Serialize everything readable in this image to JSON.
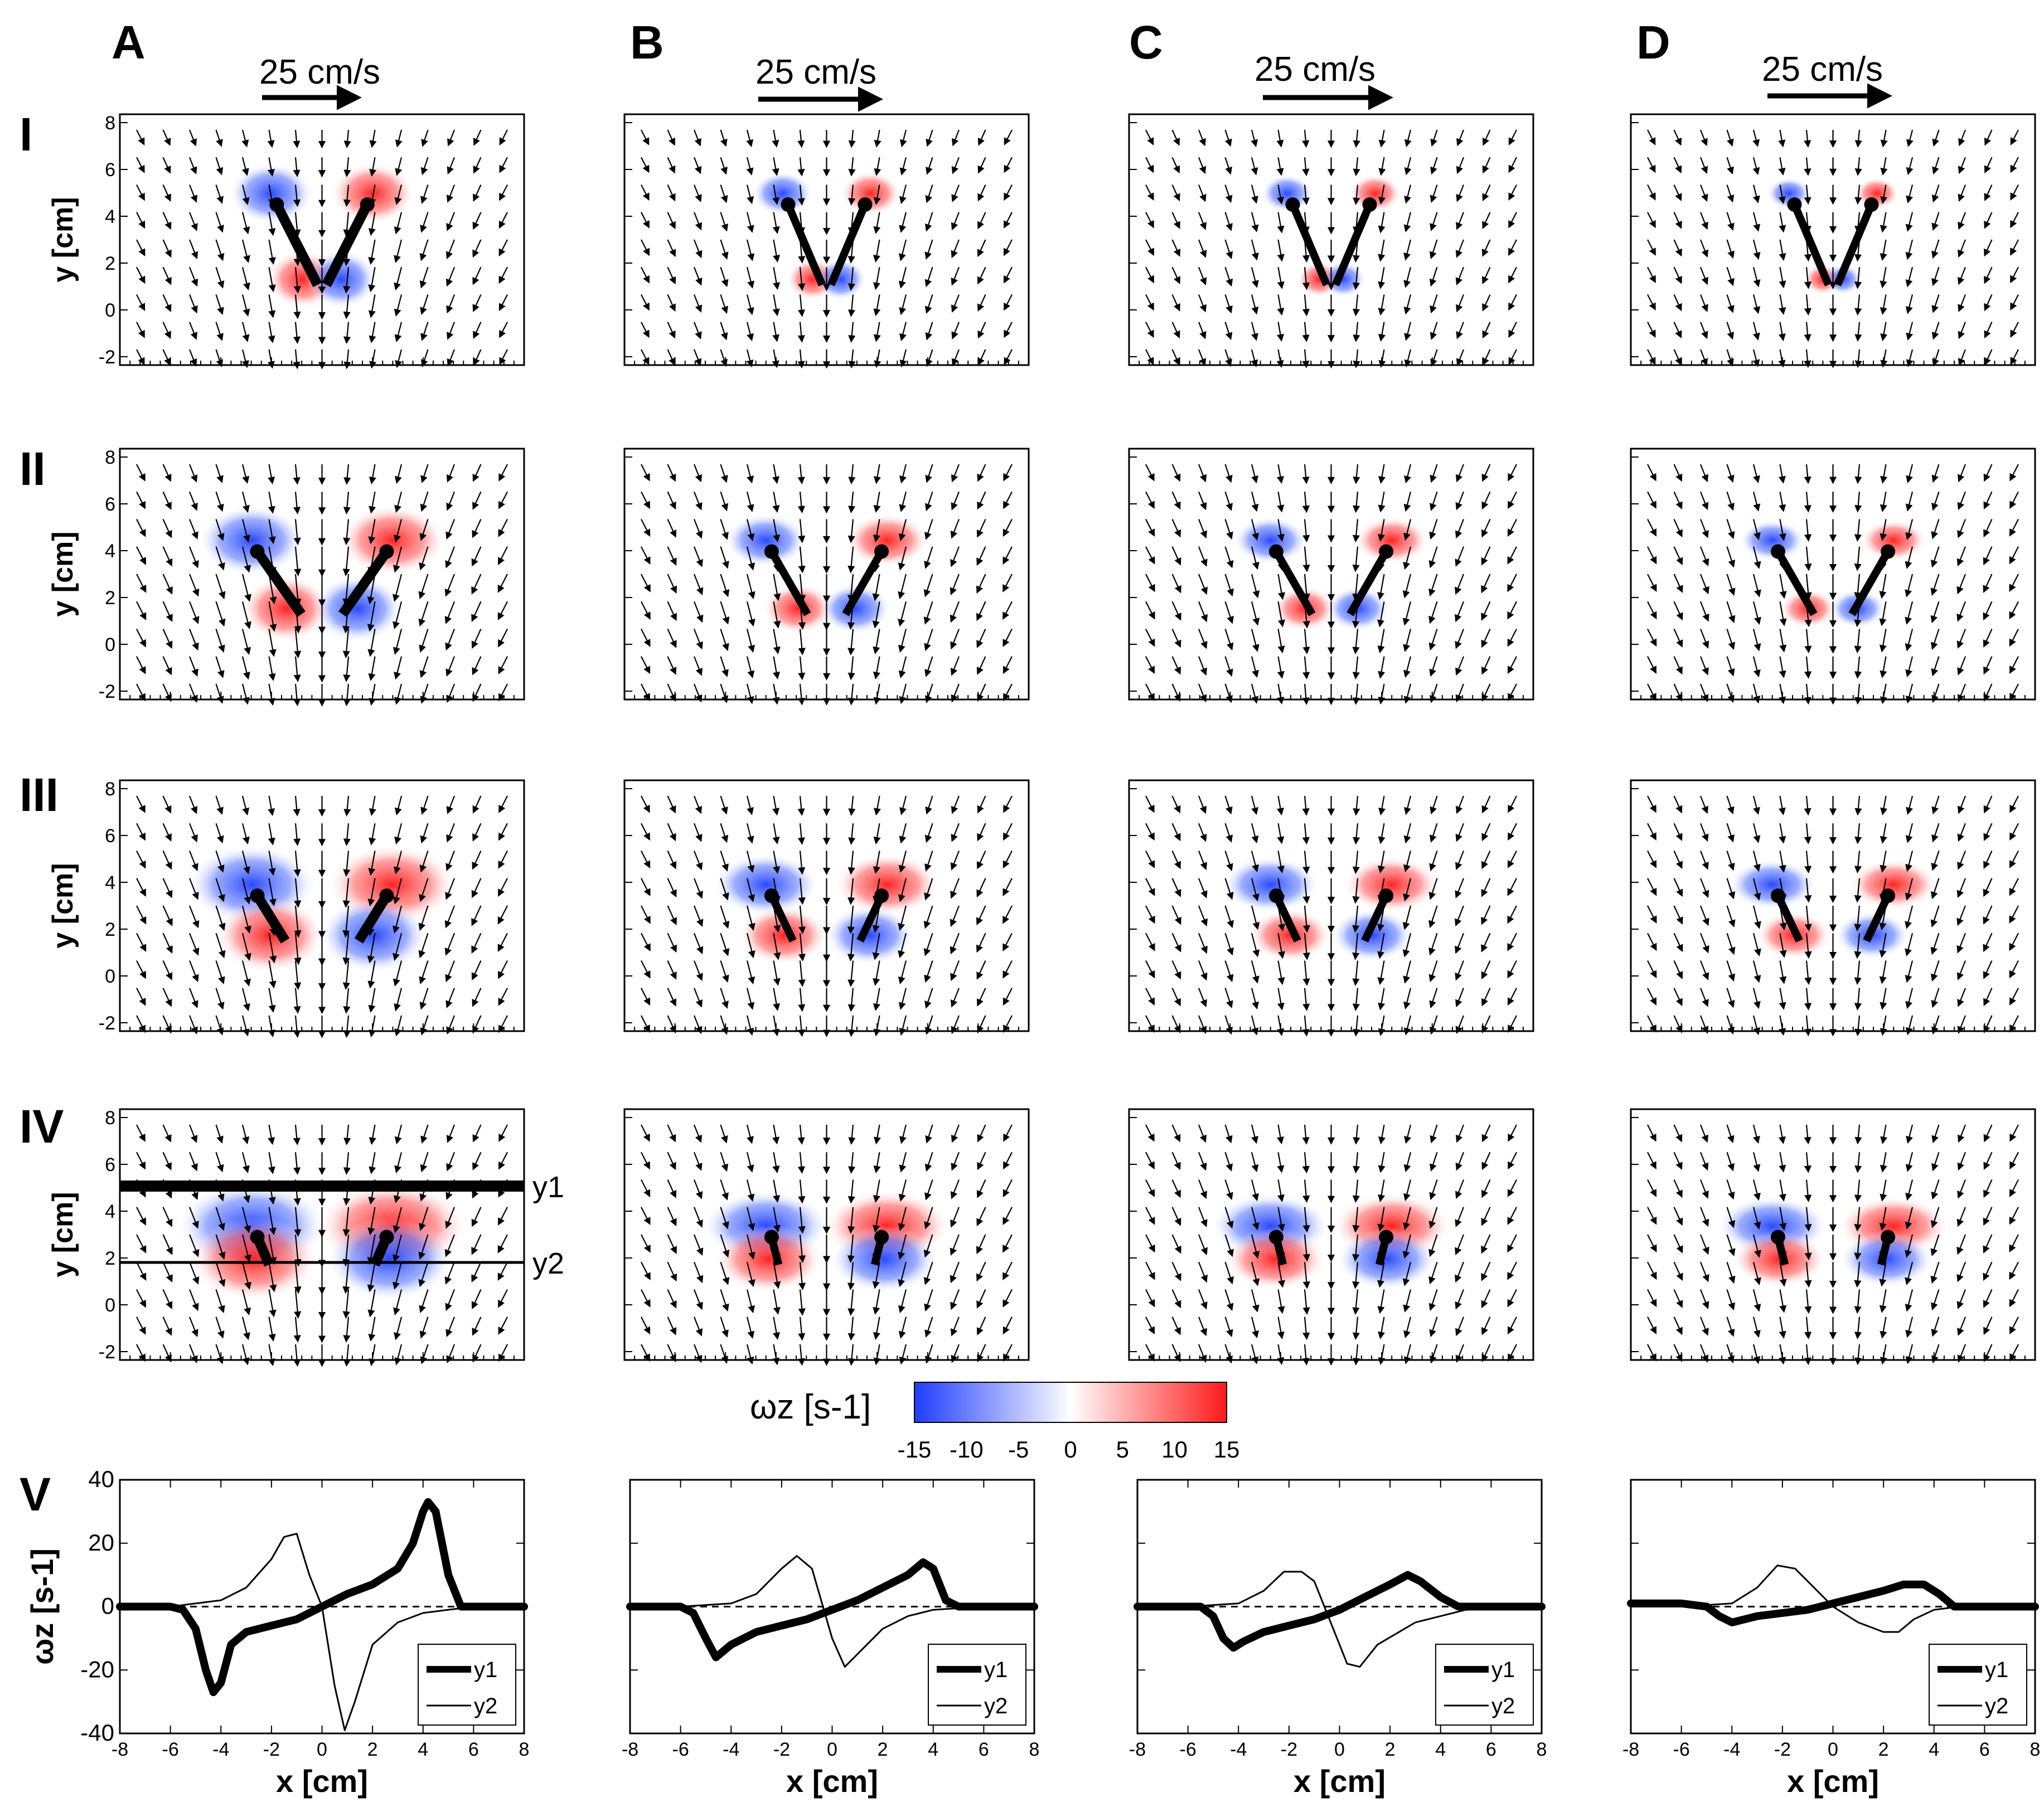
{
  "figure": {
    "columns": [
      "A",
      "B",
      "C",
      "D"
    ],
    "rows": [
      "I",
      "II",
      "III",
      "IV",
      "V"
    ],
    "scale_arrow_label": "25 cm/s",
    "flow_panel_ylabel": "y [cm]",
    "flow_panel_yticks": [
      "8",
      "6",
      "4",
      "2",
      "0",
      "-2"
    ],
    "line_labels": [
      "y1",
      "y2"
    ],
    "colorbar": {
      "label": "ωz [s-1]",
      "ticks": [
        "-15",
        "-10",
        "-5",
        "0",
        "5",
        "10",
        "15"
      ],
      "range": [
        -15,
        15
      ],
      "colors": {
        "negative": "#1f3dff",
        "zero": "#ffffff",
        "positive": "#ff1a1a"
      }
    },
    "bottom_xlabel": "x [cm]",
    "bottom_ylabel": "ωz [s-1]"
  },
  "chart_data": [
    {
      "type": "line",
      "panel": "A-V",
      "title": "",
      "xlabel": "x [cm]",
      "ylabel": "ωz [s-1]",
      "xlim": [
        -8,
        8
      ],
      "ylim": [
        -40,
        40
      ],
      "xticks": [
        -8,
        -6,
        -4,
        -2,
        0,
        2,
        4,
        6,
        8
      ],
      "yticks": [
        40,
        20,
        0,
        -20,
        -40
      ],
      "legend": "bottom-right",
      "series": [
        {
          "name": "y1",
          "x": [
            -8,
            -6,
            -5.5,
            -5,
            -4.6,
            -4.3,
            -4,
            -3.6,
            -3,
            -2,
            -1,
            0,
            1,
            2,
            3,
            3.6,
            4,
            4.2,
            4.5,
            5,
            5.5,
            6,
            8
          ],
          "y": [
            0,
            0,
            -1,
            -7,
            -20,
            -27,
            -24,
            -12,
            -8,
            -6,
            -4,
            0,
            4,
            7,
            12,
            20,
            30,
            33,
            30,
            10,
            0,
            0,
            0
          ]
        },
        {
          "name": "y2",
          "x": [
            -8,
            -6,
            -4,
            -3,
            -2,
            -1.5,
            -1,
            -0.5,
            0,
            0.5,
            0.9,
            1.3,
            2,
            3,
            4,
            6,
            8
          ],
          "y": [
            0,
            0,
            2,
            6,
            15,
            22,
            23,
            10,
            0,
            -25,
            -39,
            -30,
            -12,
            -5,
            -2,
            0,
            0
          ]
        }
      ]
    },
    {
      "type": "line",
      "panel": "B-V",
      "title": "",
      "xlabel": "x [cm]",
      "ylabel": "",
      "xlim": [
        -8,
        8
      ],
      "ylim": [
        -40,
        40
      ],
      "xticks": [
        -8,
        -6,
        -4,
        -2,
        0,
        2,
        4,
        6,
        8
      ],
      "yticks": [
        40,
        20,
        0,
        -20,
        -40
      ],
      "legend": "bottom-right",
      "series": [
        {
          "name": "y1",
          "x": [
            -8,
            -6,
            -5.5,
            -5,
            -4.6,
            -4,
            -3,
            -2,
            -1,
            0,
            1,
            2,
            3,
            3.6,
            4,
            4.5,
            5,
            8
          ],
          "y": [
            0,
            0,
            -2,
            -10,
            -16,
            -12,
            -8,
            -6,
            -4,
            -1,
            2,
            6,
            10,
            14,
            12,
            2,
            0,
            0
          ]
        },
        {
          "name": "y2",
          "x": [
            -8,
            -6,
            -4,
            -3,
            -2,
            -1.4,
            -0.8,
            0,
            0.5,
            1,
            2,
            3,
            4,
            6,
            8
          ],
          "y": [
            0,
            0,
            1,
            4,
            12,
            16,
            12,
            -10,
            -19,
            -15,
            -7,
            -3,
            -1,
            0,
            0
          ]
        }
      ]
    },
    {
      "type": "line",
      "panel": "C-V",
      "title": "",
      "xlabel": "x [cm]",
      "ylabel": "",
      "xlim": [
        -8,
        8
      ],
      "ylim": [
        -40,
        40
      ],
      "xticks": [
        -8,
        -6,
        -4,
        -2,
        0,
        2,
        4,
        6,
        8
      ],
      "yticks": [
        40,
        20,
        0,
        -20,
        -40
      ],
      "legend": "bottom-right",
      "series": [
        {
          "name": "y1",
          "x": [
            -8,
            -5.5,
            -5,
            -4.6,
            -4.2,
            -3.8,
            -3,
            -2,
            -1,
            0,
            1,
            2,
            2.7,
            3.2,
            4,
            4.7,
            5.2,
            8
          ],
          "y": [
            0,
            0,
            -3,
            -10,
            -13,
            -11,
            -8,
            -6,
            -4,
            -1,
            3,
            7,
            10,
            8,
            3,
            0,
            0,
            0
          ]
        },
        {
          "name": "y2",
          "x": [
            -8,
            -6,
            -4,
            -3,
            -2.2,
            -1.5,
            -1,
            -0.3,
            0.3,
            0.8,
            1.5,
            3,
            5,
            8
          ],
          "y": [
            0,
            0,
            1,
            5,
            11,
            11,
            8,
            -6,
            -18,
            -19,
            -12,
            -5,
            -1,
            0
          ]
        }
      ]
    },
    {
      "type": "line",
      "panel": "D-V",
      "title": "",
      "xlabel": "x [cm]",
      "ylabel": "",
      "xlim": [
        -8,
        8
      ],
      "ylim": [
        -40,
        40
      ],
      "xticks": [
        -8,
        -6,
        -4,
        -2,
        0,
        2,
        4,
        6,
        8
      ],
      "yticks": [
        40,
        20,
        0,
        -20,
        -40
      ],
      "legend": "bottom-right",
      "series": [
        {
          "name": "y1",
          "x": [
            -8,
            -6,
            -5,
            -4.5,
            -4,
            -3.5,
            -3,
            -2,
            -1,
            0,
            1,
            2,
            2.8,
            3.6,
            4.2,
            4.8,
            8
          ],
          "y": [
            1,
            1,
            0,
            -3,
            -5,
            -4,
            -3,
            -2,
            -1,
            1,
            3,
            5,
            7,
            7,
            4,
            0,
            0
          ]
        },
        {
          "name": "y2",
          "x": [
            -8,
            -6,
            -4,
            -3,
            -2.2,
            -1.5,
            -1,
            0,
            1,
            2,
            2.6,
            3.2,
            4,
            5,
            8
          ],
          "y": [
            0,
            0,
            1,
            6,
            13,
            12,
            8,
            0,
            -5,
            -8,
            -8,
            -4,
            -1,
            0,
            0
          ]
        }
      ]
    }
  ]
}
